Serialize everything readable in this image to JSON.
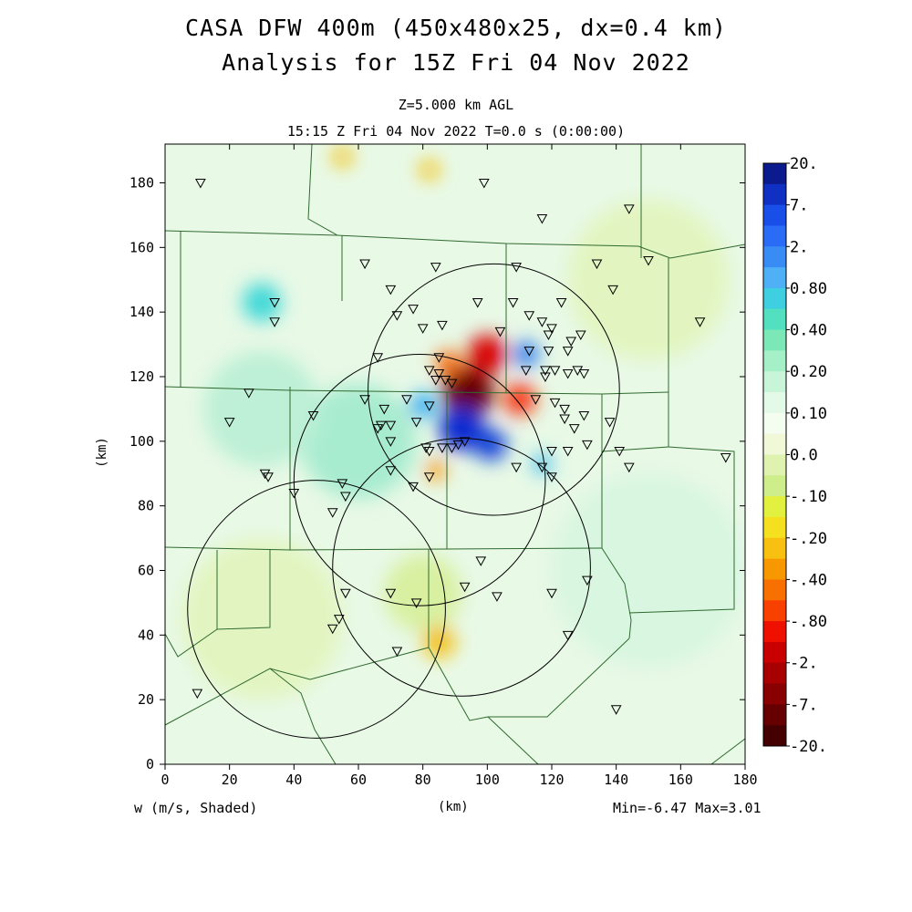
{
  "header": {
    "title_line1": "CASA DFW 400m (450x480x25, dx=0.4 km)",
    "title_line2": "Analysis for 15Z Fri 04 Nov 2022",
    "level": "Z=5.000 km AGL",
    "valid_time": "15:15 Z Fri 04 Nov 2022    T=0.0 s (0:00:00)"
  },
  "footer": {
    "variable": "w (m/s, Shaded)",
    "x_units": "(km)",
    "min_max": "Min=-6.47 Max=3.01"
  },
  "chart_data": {
    "type": "heatmap",
    "field": "w (m/s, Shaded)",
    "xlabel": "(km)",
    "ylabel": "(km)",
    "xlim": [
      0,
      180
    ],
    "ylim": [
      0,
      192
    ],
    "x_ticks": [
      "0",
      "20",
      "40",
      "60",
      "80",
      "100",
      "120",
      "140",
      "160",
      "180"
    ],
    "y_ticks": [
      "0",
      "20",
      "40",
      "60",
      "80",
      "100",
      "120",
      "140",
      "160",
      "180"
    ],
    "min": -6.47,
    "max": 3.01,
    "colorbar": {
      "labels": [
        "20.",
        "7.",
        "2.",
        "0.80",
        "0.40",
        "0.20",
        "0.10",
        "0.0",
        "-.10",
        "-.20",
        "-.40",
        "-.80",
        "-2.",
        "-7.",
        "-20."
      ],
      "colors": [
        "#0b1a8c",
        "#1030c4",
        "#1a4ee8",
        "#2a6cf5",
        "#3a8cf5",
        "#4fb0f5",
        "#3ed0e0",
        "#52e0c0",
        "#7ce8b8",
        "#a6f0c8",
        "#c8f5d8",
        "#e4fae8",
        "#f5fcf0",
        "#f0f8d8",
        "#e0f2b0",
        "#cdee8a",
        "#e2f040",
        "#f5e020",
        "#f8c010",
        "#f89800",
        "#f87000",
        "#f84000",
        "#f01000",
        "#c80000",
        "#a80000",
        "#880000",
        "#660000",
        "#440000"
      ]
    },
    "radar_rings": [
      {
        "cx": 102,
        "cy": 116,
        "r": 39
      },
      {
        "cx": 79,
        "cy": 88,
        "r": 39
      },
      {
        "cx": 92,
        "cy": 61,
        "r": 40
      },
      {
        "cx": 47,
        "cy": 48,
        "r": 40
      }
    ],
    "features": [
      {
        "x": 94,
        "y": 115,
        "r": 8,
        "w": -6.47
      },
      {
        "x": 100,
        "y": 127,
        "r": 6,
        "w": -2.0
      },
      {
        "x": 110,
        "y": 113,
        "r": 5,
        "w": -1.2
      },
      {
        "x": 88,
        "y": 124,
        "r": 4,
        "w": -0.8
      },
      {
        "x": 92,
        "y": 104,
        "r": 7,
        "w": 2.5
      },
      {
        "x": 101,
        "y": 99,
        "r": 5,
        "w": 3.01
      },
      {
        "x": 112,
        "y": 127,
        "r": 4,
        "w": 0.9
      },
      {
        "x": 80,
        "y": 111,
        "r": 4,
        "w": 0.6
      },
      {
        "x": 84,
        "y": 91,
        "r": 3,
        "w": -0.5
      },
      {
        "x": 117,
        "y": 93,
        "r": 3,
        "w": 0.5
      },
      {
        "x": 85,
        "y": 38,
        "r": 5,
        "w": -0.3
      },
      {
        "x": 80,
        "y": 53,
        "r": 12,
        "w": -0.12
      },
      {
        "x": 30,
        "y": 143,
        "r": 6,
        "w": 0.35
      },
      {
        "x": 55,
        "y": 188,
        "r": 3,
        "w": -0.3
      },
      {
        "x": 82,
        "y": 184,
        "r": 3,
        "w": -0.25
      },
      {
        "x": 60,
        "y": 100,
        "r": 18,
        "w": 0.12
      },
      {
        "x": 30,
        "y": 110,
        "r": 18,
        "w": 0.1
      },
      {
        "x": 150,
        "y": 60,
        "r": 30,
        "w": 0.05
      },
      {
        "x": 30,
        "y": 45,
        "r": 25,
        "w": -0.06
      },
      {
        "x": 150,
        "y": 150,
        "r": 25,
        "w": -0.05
      }
    ],
    "stations": [
      [
        11,
        180
      ],
      [
        99,
        180
      ],
      [
        117,
        169
      ],
      [
        144,
        172
      ],
      [
        150,
        156
      ],
      [
        62,
        155
      ],
      [
        84,
        154
      ],
      [
        109,
        154
      ],
      [
        134,
        155
      ],
      [
        34,
        143
      ],
      [
        34,
        137
      ],
      [
        70,
        147
      ],
      [
        72,
        139
      ],
      [
        77,
        141
      ],
      [
        80,
        135
      ],
      [
        86,
        136
      ],
      [
        97,
        143
      ],
      [
        104,
        134
      ],
      [
        108,
        143
      ],
      [
        113,
        139
      ],
      [
        117,
        137
      ],
      [
        120,
        135
      ],
      [
        123,
        143
      ],
      [
        119,
        133
      ],
      [
        119,
        128
      ],
      [
        125,
        128
      ],
      [
        126,
        131
      ],
      [
        129,
        133
      ],
      [
        166,
        137
      ],
      [
        139,
        147
      ],
      [
        66,
        126
      ],
      [
        85,
        126
      ],
      [
        82,
        122
      ],
      [
        85,
        121
      ],
      [
        84,
        119
      ],
      [
        87,
        119
      ],
      [
        89,
        118
      ],
      [
        113,
        128
      ],
      [
        112,
        122
      ],
      [
        118,
        122
      ],
      [
        121,
        122
      ],
      [
        118,
        120
      ],
      [
        125,
        121
      ],
      [
        130,
        121
      ],
      [
        128,
        122
      ],
      [
        26,
        115
      ],
      [
        46,
        108
      ],
      [
        62,
        113
      ],
      [
        68,
        110
      ],
      [
        67,
        105
      ],
      [
        70,
        105
      ],
      [
        70,
        100
      ],
      [
        66,
        104
      ],
      [
        75,
        113
      ],
      [
        78,
        106
      ],
      [
        82,
        111
      ],
      [
        93,
        100
      ],
      [
        91,
        99
      ],
      [
        89,
        98
      ],
      [
        81,
        98
      ],
      [
        82,
        97
      ],
      [
        86,
        98
      ],
      [
        115,
        113
      ],
      [
        121,
        112
      ],
      [
        124,
        110
      ],
      [
        124,
        107
      ],
      [
        127,
        104
      ],
      [
        130,
        108
      ],
      [
        125,
        97
      ],
      [
        131,
        99
      ],
      [
        120,
        97
      ],
      [
        117,
        92
      ],
      [
        109,
        92
      ],
      [
        77,
        86
      ],
      [
        82,
        89
      ],
      [
        70,
        91
      ],
      [
        40,
        84
      ],
      [
        55,
        87
      ],
      [
        56,
        83
      ],
      [
        52,
        78
      ],
      [
        31,
        90
      ],
      [
        32,
        89
      ],
      [
        20,
        106
      ],
      [
        120,
        89
      ],
      [
        138,
        106
      ],
      [
        141,
        97
      ],
      [
        144,
        92
      ],
      [
        174,
        95
      ],
      [
        98,
        63
      ],
      [
        93,
        55
      ],
      [
        103,
        52
      ],
      [
        120,
        53
      ],
      [
        131,
        57
      ],
      [
        125,
        40
      ],
      [
        78,
        50
      ],
      [
        70,
        53
      ],
      [
        56,
        53
      ],
      [
        54,
        45
      ],
      [
        52,
        42
      ],
      [
        72,
        35
      ],
      [
        10,
        22
      ],
      [
        140,
        17
      ]
    ]
  }
}
